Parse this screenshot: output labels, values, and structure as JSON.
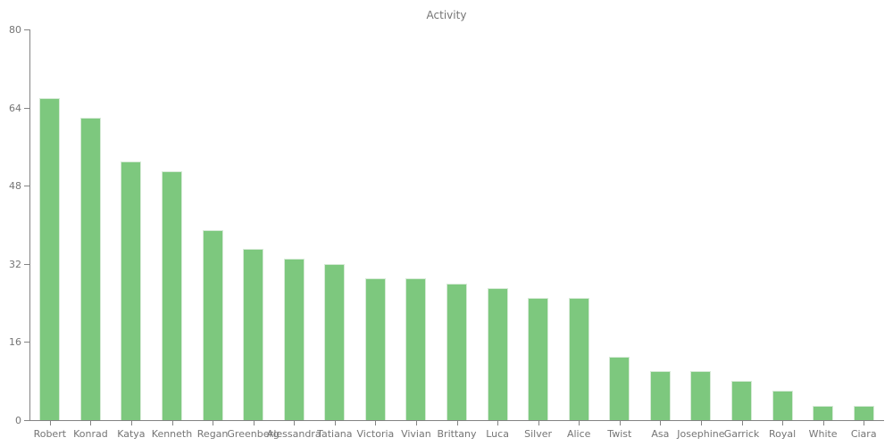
{
  "chart_data": {
    "type": "bar",
    "title": "Activity",
    "categories": [
      "Robert",
      "Konrad",
      "Katya",
      "Kenneth",
      "Regan",
      "Greenberg",
      "Alessandra",
      "Tatiana",
      "Victoria",
      "Vivian",
      "Brittany",
      "Luca",
      "Silver",
      "Alice",
      "Twist",
      "Asa",
      "Josephine",
      "Garrick",
      "Royal",
      "White",
      "Ciara"
    ],
    "values": [
      66,
      62,
      53,
      51,
      39,
      35,
      33,
      32,
      29,
      29,
      28,
      27,
      25,
      25,
      13,
      10,
      10,
      8,
      6,
      3,
      3
    ],
    "xlabel": "",
    "ylabel": "",
    "ylim": [
      0,
      80
    ],
    "yticks": [
      0,
      16,
      32,
      48,
      64,
      80
    ],
    "grid": false,
    "legend_position": "none",
    "colors": {
      "bar_fill": "#7dc87e",
      "bar_edge": "#d6ead6",
      "axis": "#848484",
      "tick_label": "#757575",
      "title": "#757575",
      "background": "#ffffff"
    }
  }
}
